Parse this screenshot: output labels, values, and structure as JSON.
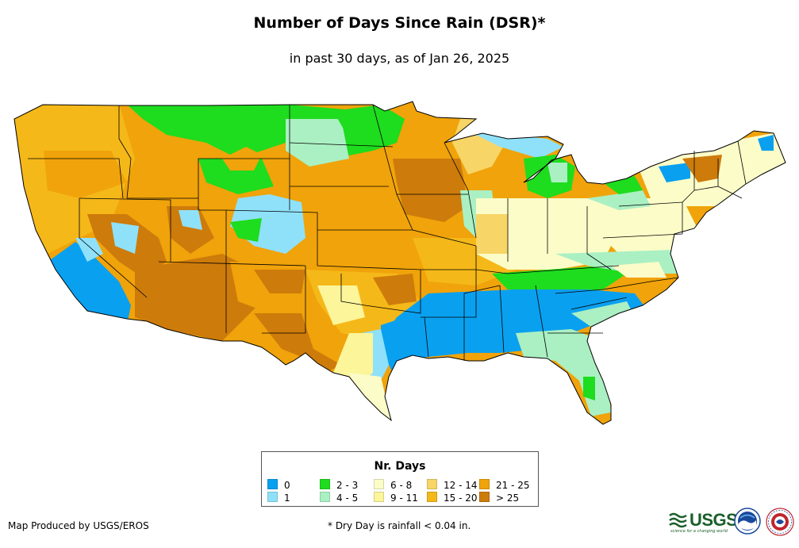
{
  "header": {
    "title": "Number of Days Since Rain (DSR)*",
    "subtitle": "in past 30 days, as of Jan 26, 2025"
  },
  "legend": {
    "title": "Nr. Days",
    "items": [
      {
        "label": "0",
        "color": "#0aa0f0"
      },
      {
        "label": "1",
        "color": "#8fe1fa"
      },
      {
        "label": "2 - 3",
        "color": "#1edc1e"
      },
      {
        "label": "4 - 5",
        "color": "#aaf0c3"
      },
      {
        "label": "6 - 8",
        "color": "#fcfcc8"
      },
      {
        "label": "9 - 11",
        "color": "#fcf59a"
      },
      {
        "label": "12 - 14",
        "color": "#f7d566"
      },
      {
        "label": "15 - 20",
        "color": "#f5b819"
      },
      {
        "label": "21 - 25",
        "color": "#f0a30a"
      },
      {
        "label": "> 25",
        "color": "#cd7b0b"
      }
    ]
  },
  "footer": {
    "credit": "Map Produced by USGS/EROS",
    "note": "* Dry Day is rainfall < 0.04 in."
  },
  "logos": {
    "usgs": "USGS",
    "usgs_tagline": "science for a changing world",
    "noaa": "NOAA",
    "nws": "National Weather Service"
  }
}
